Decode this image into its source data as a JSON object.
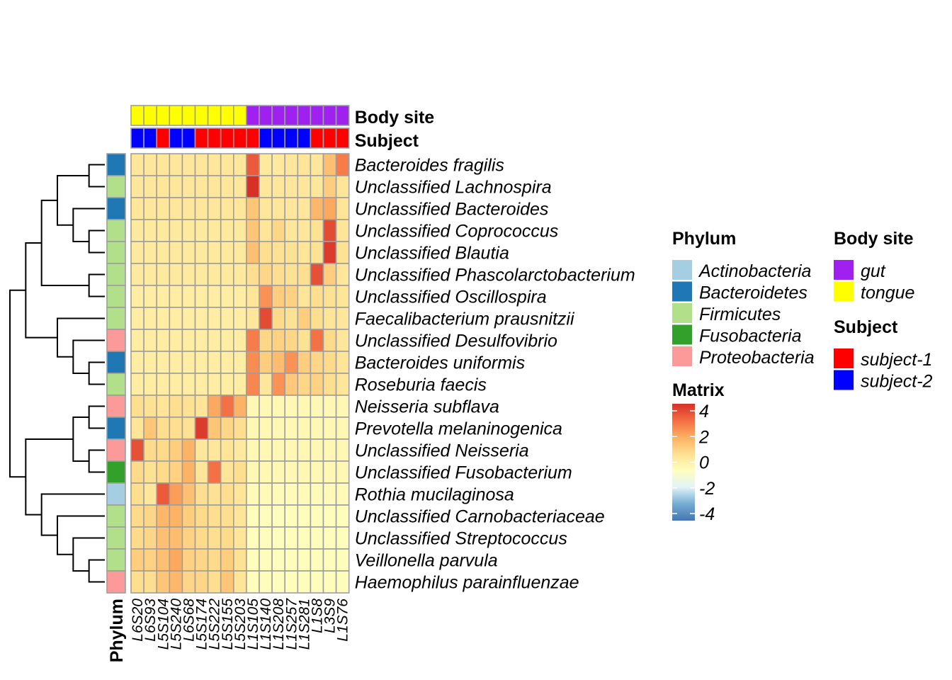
{
  "chart_data": {
    "type": "heatmap",
    "rows": [
      "Bacteroides fragilis",
      "Unclassified  Lachnospira",
      "Unclassified  Bacteroides",
      "Unclassified  Coprococcus",
      "Unclassified  Blautia",
      "Unclassified  Phascolarctobacterium",
      "Unclassified  Oscillospira",
      "Faecalibacterium prausnitzii",
      "Unclassified  Desulfovibrio",
      "Bacteroides uniformis",
      "Roseburia faecis",
      "Neisseria subflava",
      "Prevotella melaninogenica",
      "Unclassified  Neisseria",
      "Unclassified  Fusobacterium",
      "Rothia mucilaginosa",
      "Unclassified Carnobacteriaceae",
      "Unclassified  Streptococcus",
      "Veillonella parvula",
      "Haemophilus parainfluenzae"
    ],
    "columns": [
      "L6S20",
      "L6S93",
      "L5S104",
      "L5S240",
      "L6S68",
      "L5S174",
      "L5S222",
      "L5S155",
      "L5S203",
      "L1S105",
      "L1S140",
      "L1S208",
      "L1S257",
      "L1S281",
      "L1S8",
      "L3S9",
      "L1S76"
    ],
    "values": [
      [
        0.3,
        0.3,
        0.3,
        0.3,
        0.3,
        0.3,
        0.3,
        0.3,
        0.3,
        3.2,
        0.2,
        0.2,
        0.3,
        0.4,
        0.3,
        1.3,
        2.6
      ],
      [
        0.3,
        0.3,
        0.3,
        0.3,
        0.3,
        0.3,
        0.3,
        0.3,
        0.3,
        4.0,
        0.3,
        0.3,
        0.3,
        0.3,
        0.3,
        1.0,
        0.4
      ],
      [
        0.3,
        0.3,
        0.3,
        0.3,
        0.3,
        0.3,
        0.3,
        0.3,
        0.3,
        1.2,
        0.3,
        0.3,
        0.3,
        0.3,
        1.5,
        1.8,
        0.4
      ],
      [
        0.2,
        0.2,
        0.2,
        0.2,
        0.2,
        0.2,
        0.2,
        0.2,
        0.2,
        1.2,
        0.4,
        0.8,
        0.3,
        0.3,
        0.5,
        3.5,
        0.4
      ],
      [
        0.2,
        0.2,
        0.2,
        0.2,
        0.2,
        0.2,
        0.2,
        0.2,
        0.2,
        1.3,
        0.6,
        0.5,
        0.5,
        0.4,
        0.5,
        3.8,
        0.5
      ],
      [
        0.2,
        0.2,
        0.2,
        0.2,
        0.2,
        0.2,
        0.2,
        0.2,
        0.2,
        0.6,
        0.8,
        0.6,
        0.5,
        0.6,
        3.4,
        1.0,
        0.3
      ],
      [
        0.1,
        0.1,
        0.1,
        0.1,
        0.1,
        0.1,
        0.1,
        0.1,
        0.1,
        0.4,
        2.2,
        1.0,
        0.9,
        0.4,
        0.6,
        0.5,
        0.4
      ],
      [
        0.1,
        0.1,
        0.1,
        0.1,
        0.1,
        0.1,
        0.1,
        0.1,
        0.1,
        0.3,
        3.5,
        0.7,
        0.5,
        1.0,
        0.6,
        0.4,
        0.3
      ],
      [
        0.1,
        0.1,
        0.1,
        0.1,
        0.1,
        0.1,
        0.1,
        0.1,
        0.1,
        2.6,
        0.8,
        0.9,
        0.8,
        0.5,
        2.8,
        0.7,
        0.3
      ],
      [
        0.1,
        0.1,
        0.1,
        0.1,
        0.1,
        0.1,
        0.1,
        0.1,
        0.1,
        2.3,
        1.0,
        1.4,
        2.2,
        1.0,
        0.8,
        0.7,
        0.4
      ],
      [
        0.1,
        0.1,
        0.1,
        0.1,
        0.1,
        0.1,
        0.1,
        0.1,
        0.1,
        2.4,
        0.3,
        2.2,
        1.1,
        0.8,
        0.9,
        0.6,
        0.3
      ],
      [
        0.6,
        0.5,
        0.4,
        0.6,
        0.5,
        0.4,
        1.8,
        2.8,
        1.6,
        -0.3,
        -0.3,
        -0.3,
        -0.3,
        -0.3,
        -0.3,
        -0.3,
        -0.3
      ],
      [
        0.4,
        1.2,
        0.6,
        0.6,
        0.5,
        3.8,
        1.2,
        0.8,
        0.6,
        -0.3,
        -0.3,
        -0.3,
        -0.3,
        -0.3,
        -0.3,
        -0.3,
        -0.3
      ],
      [
        3.4,
        0.7,
        0.7,
        1.0,
        1.6,
        0.3,
        0.3,
        0.4,
        0.2,
        -0.3,
        -0.3,
        -0.3,
        -0.3,
        -0.3,
        -0.3,
        -0.3,
        -0.3
      ],
      [
        0.7,
        0.5,
        0.7,
        0.9,
        1.6,
        0.4,
        2.8,
        0.4,
        0.6,
        -0.3,
        -0.3,
        -0.3,
        -0.3,
        -0.3,
        -0.3,
        -0.3,
        -0.3
      ],
      [
        0.6,
        0.3,
        3.2,
        2.0,
        1.3,
        0.6,
        0.5,
        0.6,
        0.4,
        -0.4,
        -0.4,
        -0.4,
        -0.4,
        -0.4,
        -0.4,
        -0.4,
        -0.4
      ],
      [
        0.7,
        0.8,
        1.5,
        1.6,
        1.0,
        0.7,
        0.6,
        0.6,
        0.4,
        -0.5,
        -0.5,
        -0.5,
        -0.5,
        -0.5,
        -0.5,
        -0.5,
        -0.5
      ],
      [
        0.7,
        0.8,
        1.3,
        1.4,
        0.9,
        0.7,
        0.6,
        0.7,
        0.4,
        -0.5,
        -0.5,
        -0.5,
        -0.5,
        -0.5,
        -0.5,
        -0.5,
        -0.5
      ],
      [
        1.0,
        0.9,
        1.3,
        1.8,
        0.9,
        0.8,
        0.7,
        1.0,
        0.5,
        -0.5,
        -0.5,
        -0.5,
        -0.5,
        -0.5,
        -0.5,
        -0.5,
        -0.5
      ],
      [
        0.6,
        0.6,
        1.2,
        1.5,
        0.8,
        0.8,
        0.6,
        1.2,
        0.4,
        -0.5,
        -0.5,
        -0.5,
        -0.5,
        -0.5,
        -0.5,
        -0.5,
        -0.5
      ]
    ],
    "row_phylum": [
      "Bacteroidetes",
      "Firmicutes",
      "Bacteroidetes",
      "Firmicutes",
      "Firmicutes",
      "Firmicutes",
      "Firmicutes",
      "Firmicutes",
      "Proteobacteria",
      "Bacteroidetes",
      "Firmicutes",
      "Proteobacteria",
      "Bacteroidetes",
      "Proteobacteria",
      "Fusobacteria",
      "Actinobacteria",
      "Firmicutes",
      "Firmicutes",
      "Firmicutes",
      "Proteobacteria"
    ],
    "col_body_site": [
      "tongue",
      "tongue",
      "tongue",
      "tongue",
      "tongue",
      "tongue",
      "tongue",
      "tongue",
      "tongue",
      "gut",
      "gut",
      "gut",
      "gut",
      "gut",
      "gut",
      "gut",
      "gut"
    ],
    "col_subject": [
      "subject-2",
      "subject-2",
      "subject-1",
      "subject-2",
      "subject-2",
      "subject-1",
      "subject-1",
      "subject-1",
      "subject-1",
      "subject-1",
      "subject-2",
      "subject-2",
      "subject-2",
      "subject-2",
      "subject-1",
      "subject-1",
      "subject-1"
    ],
    "row_annotation_label": "Phylum",
    "col_annotation_labels": [
      "Body site",
      "Subject"
    ],
    "color_scale": {
      "title": "Matrix",
      "ticks": [
        "4",
        "2",
        "0",
        "-2",
        "-4"
      ],
      "range": [
        -4,
        4
      ],
      "colors": [
        "#4575B4",
        "#74ADD1",
        "#E0F3F8",
        "#FFFFBF",
        "#FEE090",
        "#FDAE61",
        "#F46D43",
        "#D73027"
      ]
    },
    "legends": {
      "phylum": {
        "title": "Phylum",
        "items": [
          {
            "label": "Actinobacteria",
            "color": "#A6CEE3"
          },
          {
            "label": "Bacteroidetes",
            "color": "#1F78B4"
          },
          {
            "label": "Firmicutes",
            "color": "#B2DF8A"
          },
          {
            "label": "Fusobacteria",
            "color": "#33A02C"
          },
          {
            "label": "Proteobacteria",
            "color": "#FB9A99"
          }
        ]
      },
      "body_site": {
        "title": "Body site",
        "items": [
          {
            "label": "gut",
            "color": "#A020F0"
          },
          {
            "label": "tongue",
            "color": "#FFFF00"
          }
        ]
      },
      "subject": {
        "title": "Subject",
        "items": [
          {
            "label": "subject-1",
            "color": "#FF0000"
          },
          {
            "label": "subject-2",
            "color": "#0000FF"
          }
        ]
      }
    },
    "col_dendrogram": [
      [
        0,
        1
      ],
      [
        5,
        6
      ],
      [
        3,
        4
      ],
      [
        2,
        -3
      ],
      [
        7,
        8
      ],
      [
        -2,
        -5
      ],
      [
        -4,
        -6
      ],
      [
        11,
        12
      ],
      [
        -8,
        13
      ],
      [
        -9,
        10
      ],
      [
        14,
        15
      ],
      [
        -11,
        16
      ],
      [
        -12,
        -13
      ],
      [
        9,
        -10
      ],
      [
        -1,
        -7
      ],
      [
        -15,
        -14
      ]
    ],
    "row_dendrogram": [
      [
        0,
        1
      ],
      [
        3,
        4
      ],
      [
        2,
        -2
      ],
      [
        5,
        6
      ],
      [
        9,
        10
      ],
      [
        -1,
        -3
      ],
      [
        8,
        -5
      ],
      [
        7,
        -7
      ],
      [
        -4,
        -6
      ],
      [
        -9,
        -8
      ],
      [
        11,
        12
      ],
      [
        13,
        14
      ],
      [
        18,
        19
      ],
      [
        17,
        -13
      ],
      [
        16,
        -14
      ],
      [
        15,
        -15
      ],
      [
        -11,
        -12
      ],
      [
        -17,
        -16
      ],
      [
        -10,
        -18
      ]
    ]
  }
}
